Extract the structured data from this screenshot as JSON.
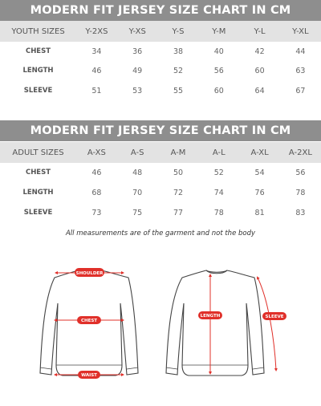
{
  "youth": {
    "title": "MODERN FIT JERSEY SIZE CHART IN CM",
    "headers": [
      "YOUTH SIZES",
      "Y-2XS",
      "Y-XS",
      "Y-S",
      "Y-M",
      "Y-L",
      "Y-XL"
    ],
    "rows": [
      {
        "label": "CHEST",
        "values": [
          "34",
          "36",
          "38",
          "40",
          "42",
          "44"
        ]
      },
      {
        "label": "LENGTH",
        "values": [
          "46",
          "49",
          "52",
          "56",
          "60",
          "63"
        ]
      },
      {
        "label": "SLEEVE",
        "values": [
          "51",
          "53",
          "55",
          "60",
          "64",
          "67"
        ]
      }
    ]
  },
  "adult": {
    "title": "MODERN FIT JERSEY SIZE CHART IN CM",
    "headers": [
      "ADULT SIZES",
      "A-XS",
      "A-S",
      "A-M",
      "A-L",
      "A-XL",
      "A-2XL"
    ],
    "rows": [
      {
        "label": "CHEST",
        "values": [
          "46",
          "48",
          "50",
          "52",
          "54",
          "56"
        ]
      },
      {
        "label": "LENGTH",
        "values": [
          "68",
          "70",
          "72",
          "74",
          "76",
          "78"
        ]
      },
      {
        "label": "SLEEVE",
        "values": [
          "73",
          "75",
          "77",
          "78",
          "81",
          "83"
        ]
      }
    ]
  },
  "note": "All measurements are of the garment and not the body",
  "diagram": {
    "front_labels": {
      "shoulder": "SHOULDER",
      "chest": "CHEST",
      "waist": "WAIST"
    },
    "back_labels": {
      "length": "LENGTH",
      "sleeve": "SLEEVE"
    },
    "colors": {
      "marker": "#e0302a",
      "outline": "#444444",
      "title_bar": "#8e8e8e",
      "header_bg": "#e3e3e3"
    }
  }
}
